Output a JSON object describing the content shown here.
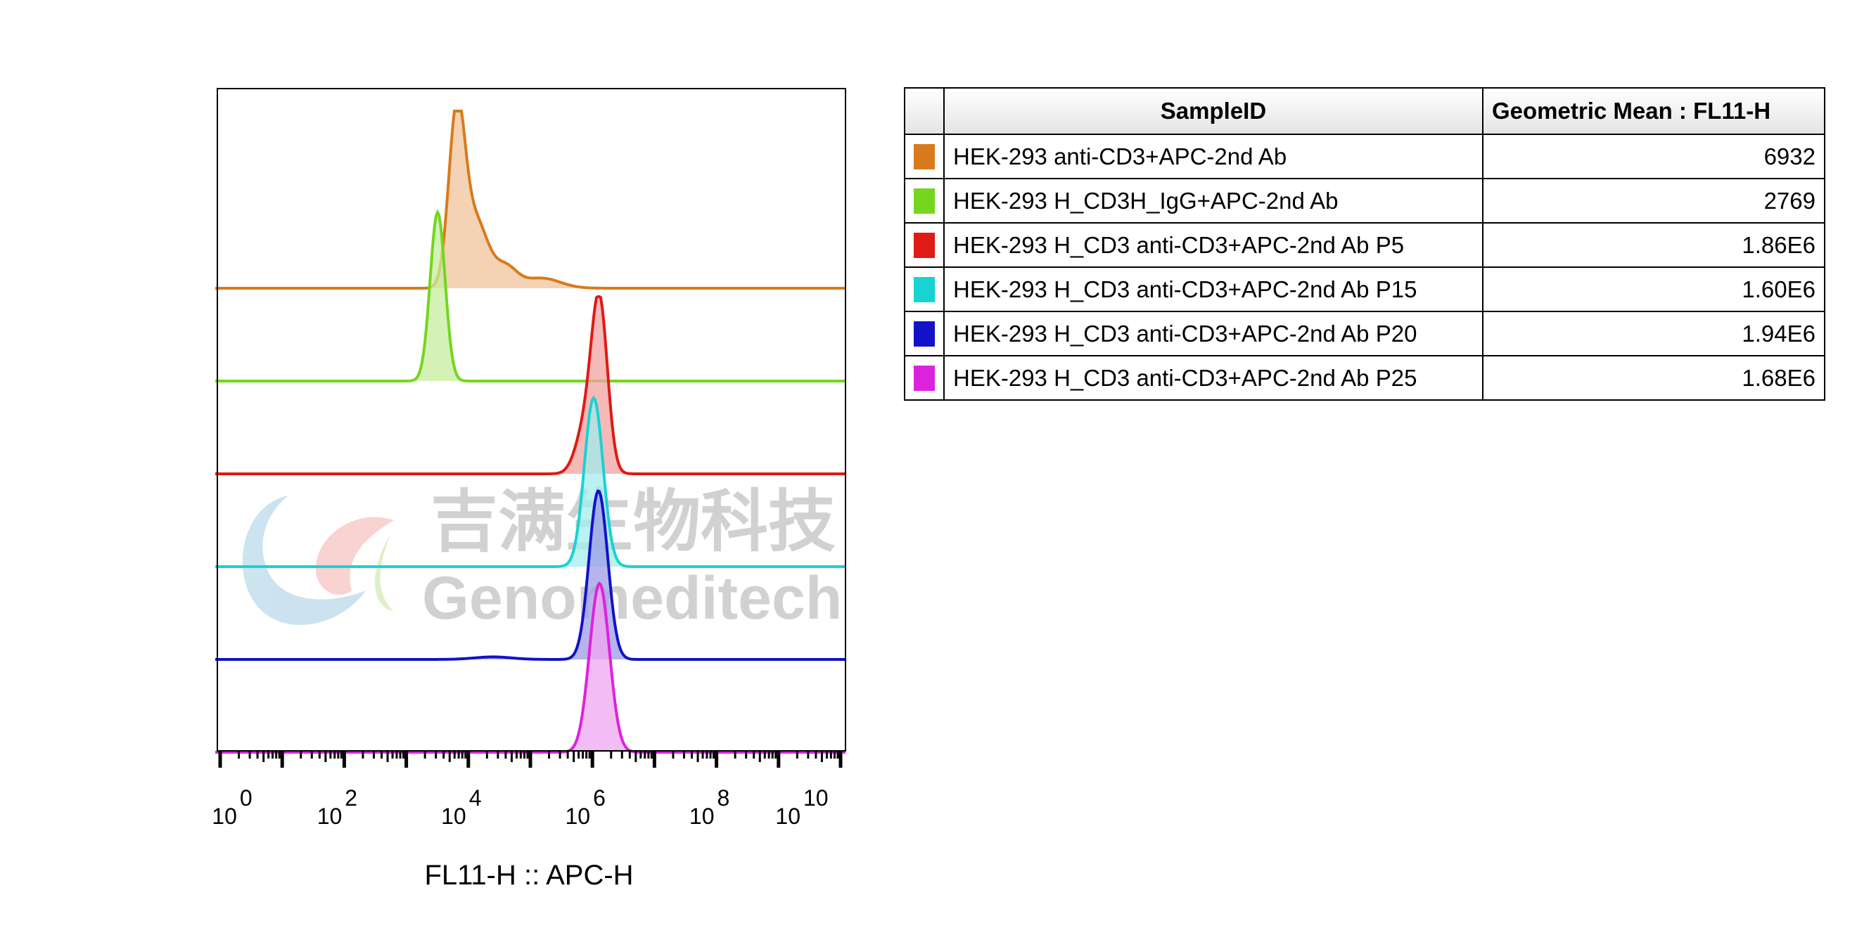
{
  "chart_data": {
    "type": "histogram",
    "xscale": "log",
    "xlim": [
      1,
      10000000000
    ],
    "xlabel": "FL11-H :: APC-H",
    "x_ticks": [
      {
        "base": "10",
        "exp": "0",
        "value": 1
      },
      {
        "base": "10",
        "exp": "2",
        "value": 100
      },
      {
        "base": "10",
        "exp": "4",
        "value": 10000
      },
      {
        "base": "10",
        "exp": "6",
        "value": 1000000
      },
      {
        "base": "10",
        "exp": "8",
        "value": 100000000
      },
      {
        "base": "10",
        "exp": "10",
        "value": 10000000000
      }
    ],
    "series": [
      {
        "name": "HEK-293 anti-CD3+APC-2nd Ab",
        "color": "#d97a1c",
        "fill": "#f0c39a",
        "peaks": [
          {
            "center": 6500,
            "spread_log10": 0.13,
            "height": 1.0
          },
          {
            "center": 13000,
            "spread_log10": 0.2,
            "height": 0.4
          },
          {
            "center": 40000,
            "spread_log10": 0.18,
            "height": 0.12
          },
          {
            "center": 150000,
            "spread_log10": 0.3,
            "height": 0.06
          }
        ]
      },
      {
        "name": "HEK-293 H_CD3H_IgG+APC-2nd Ab",
        "color": "#74d61f",
        "fill": "#c6ee9e",
        "peaks": [
          {
            "center": 3200,
            "spread_log10": 0.12,
            "height": 1.0
          }
        ]
      },
      {
        "name": "HEK-293 H_CD3 anti-CD3+APC-2nd Ab P5",
        "color": "#e01a14",
        "fill": "#f2a2a2",
        "peaks": [
          {
            "center": 1300000,
            "spread_log10": 0.13,
            "height": 1.0
          },
          {
            "center": 750000,
            "spread_log10": 0.15,
            "height": 0.25
          }
        ]
      },
      {
        "name": "HEK-293 H_CD3 anti-CD3+APC-2nd Ab P15",
        "color": "#19d2d2",
        "fill": "#a3ecec",
        "peaks": [
          {
            "center": 1050000,
            "spread_log10": 0.15,
            "height": 1.0
          }
        ]
      },
      {
        "name": "HEK-293 H_CD3 anti-CD3+APC-2nd Ab P20",
        "color": "#1212c8",
        "fill": "#9c9ce6",
        "peaks": [
          {
            "center": 1250000,
            "spread_log10": 0.15,
            "height": 1.0
          },
          {
            "center": 25000,
            "spread_log10": 0.3,
            "height": 0.015
          }
        ]
      },
      {
        "name": "HEK-293 H_CD3 anti-CD3+APC-2nd Ab P25",
        "color": "#dd22dd",
        "fill": "#f0a6f0",
        "peaks": [
          {
            "center": 1300000,
            "spread_log10": 0.16,
            "height": 1.0
          }
        ]
      }
    ]
  },
  "table": {
    "headers": {
      "sample": "SampleID",
      "mean": "Geometric Mean : FL11-H"
    },
    "rows": [
      {
        "sample": "HEK-293 anti-CD3+APC-2nd Ab",
        "mean": "6932",
        "color": "#d97a1c"
      },
      {
        "sample": "HEK-293 H_CD3H_IgG+APC-2nd Ab",
        "mean": "2769",
        "color": "#74d61f"
      },
      {
        "sample": "HEK-293 H_CD3 anti-CD3+APC-2nd Ab P5",
        "mean": "1.86E6",
        "color": "#e01a14"
      },
      {
        "sample": "HEK-293 H_CD3 anti-CD3+APC-2nd Ab P15",
        "mean": "1.60E6",
        "color": "#19d2d2"
      },
      {
        "sample": "HEK-293 H_CD3 anti-CD3+APC-2nd Ab P20",
        "mean": "1.94E6",
        "color": "#1212c8"
      },
      {
        "sample": "HEK-293 H_CD3 anti-CD3+APC-2nd Ab P25",
        "mean": "1.68E6",
        "color": "#dd22dd"
      }
    ]
  },
  "watermark": {
    "chinese": "吉满生物科技",
    "english": "Genomeditech"
  }
}
